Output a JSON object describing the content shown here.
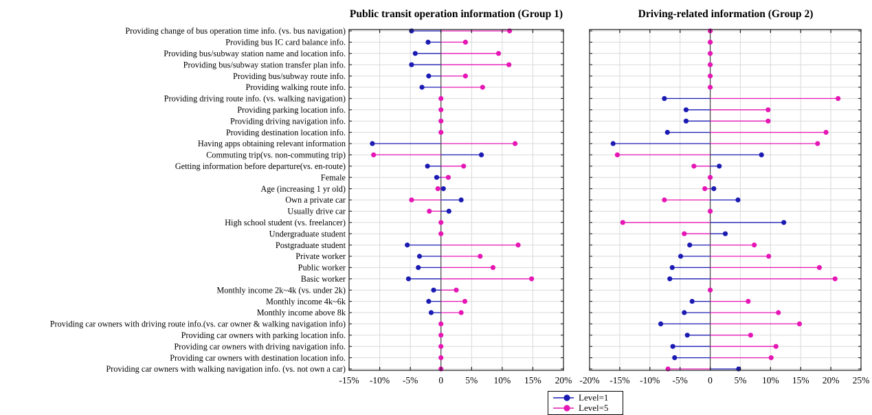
{
  "chart_data": {
    "type": "scatter",
    "subtype": "dumbbell-lollipop",
    "units": "%",
    "grid": true,
    "categories": [
      "Providing change of bus operation time info. (vs. bus navigation)",
      "Providing bus IC card balance info.",
      "Providing bus/subway station name and location info.",
      "Providing bus/subway station transfer plan info.",
      "Providing bus/subway route info.",
      "Providing walking route info.",
      "Providing driving route info. (vs. walking navigation)",
      "Providing parking location info.",
      "Providing driving navigation info.",
      "Providing destination location info.",
      "Having apps obtaining relevant information",
      "Commuting trip(vs. non-commuting trip)",
      "Getting information before departure(vs. en-route)",
      "Female",
      "Age (increasing 1 yr old)",
      "Own a private car",
      "Usually drive car",
      "High school student (vs. freelancer)",
      "Undergraduate student",
      "Postgraduate student",
      "Private worker",
      "Public worker",
      "Basic worker",
      "Monthly income 2k~4k (vs. under 2k)",
      "Monthly income 4k~6k",
      "Monthly income above 8k",
      "Providing car owners with driving route info.(vs. car owner & walking navigation info)",
      "Providing car owners with parking location info.",
      "Providing car owners with driving navigation info.",
      "Providing car owners with destination location info.",
      "Providing car owners with walking navigation info. (vs. not own a car)"
    ],
    "panels": [
      {
        "title": "Public transit operation information (Group 1)",
        "xlim": [
          -15,
          20
        ],
        "xtick_values": [
          -15,
          -10,
          -5,
          0,
          5,
          10,
          15,
          20
        ],
        "xtick_labels": [
          "-15%",
          "-10%",
          "-5%",
          "0",
          "5%",
          "10%",
          "15%",
          "20%"
        ],
        "series": [
          {
            "name": "Level=1",
            "values": [
              -4.8,
              -2.1,
              -4.2,
              -4.8,
              -2.0,
              -3.1,
              null,
              null,
              null,
              null,
              -11.2,
              6.6,
              -2.2,
              -0.7,
              0.4,
              3.3,
              1.3,
              null,
              null,
              -5.5,
              -3.5,
              -3.7,
              -5.3,
              -1.2,
              -2.0,
              -1.6,
              null,
              null,
              null,
              null,
              null
            ]
          },
          {
            "name": "Level=5",
            "values": [
              11.2,
              4.0,
              9.4,
              11.1,
              4.0,
              6.8,
              0,
              0,
              0,
              0,
              12.1,
              -11.0,
              3.7,
              1.2,
              -0.5,
              -4.8,
              -1.9,
              0,
              0,
              12.6,
              6.4,
              8.5,
              14.8,
              2.5,
              3.9,
              3.3,
              0,
              0,
              0,
              0,
              0
            ]
          }
        ]
      },
      {
        "title": "Driving-related information (Group 2)",
        "xlim": [
          -20,
          25
        ],
        "xtick_values": [
          -20,
          -15,
          -10,
          -5,
          0,
          5,
          10,
          15,
          20,
          25
        ],
        "xtick_labels": [
          "-20%",
          "-15%",
          "-10%",
          "-5%",
          "0",
          "5%",
          "10%",
          "15%",
          "20%",
          "25%"
        ],
        "series": [
          {
            "name": "Level=1",
            "values": [
              null,
              null,
              null,
              null,
              null,
              null,
              -7.6,
              -4.0,
              -4.0,
              -7.1,
              -16.1,
              8.5,
              1.5,
              null,
              0.6,
              4.6,
              null,
              12.2,
              2.5,
              -3.4,
              -4.9,
              -6.3,
              -6.7,
              null,
              -3.0,
              -4.3,
              -8.2,
              -3.8,
              -6.2,
              -5.9,
              4.7
            ]
          },
          {
            "name": "Level=5",
            "values": [
              0,
              0,
              0,
              0,
              0,
              0,
              21.2,
              9.6,
              9.6,
              19.2,
              17.8,
              -15.4,
              -2.7,
              0,
              -0.9,
              -7.6,
              0,
              -14.5,
              -4.3,
              7.3,
              9.7,
              18.1,
              20.7,
              0,
              6.3,
              11.3,
              14.8,
              6.7,
              10.9,
              10.1,
              -7.0
            ]
          }
        ]
      }
    ],
    "legend": {
      "position": "bottom-center",
      "entries": [
        {
          "label": "Level=1",
          "color": "#1b1bb3"
        },
        {
          "label": "Level=5",
          "color": "#e516b4"
        }
      ]
    },
    "colors": {
      "level1": "#1b1bb3",
      "level5": "#e516b4",
      "grid": "#d9d9d9",
      "axis": "#1a1a1a",
      "zero_line": "#4d4d4d",
      "text": "#000000"
    }
  }
}
